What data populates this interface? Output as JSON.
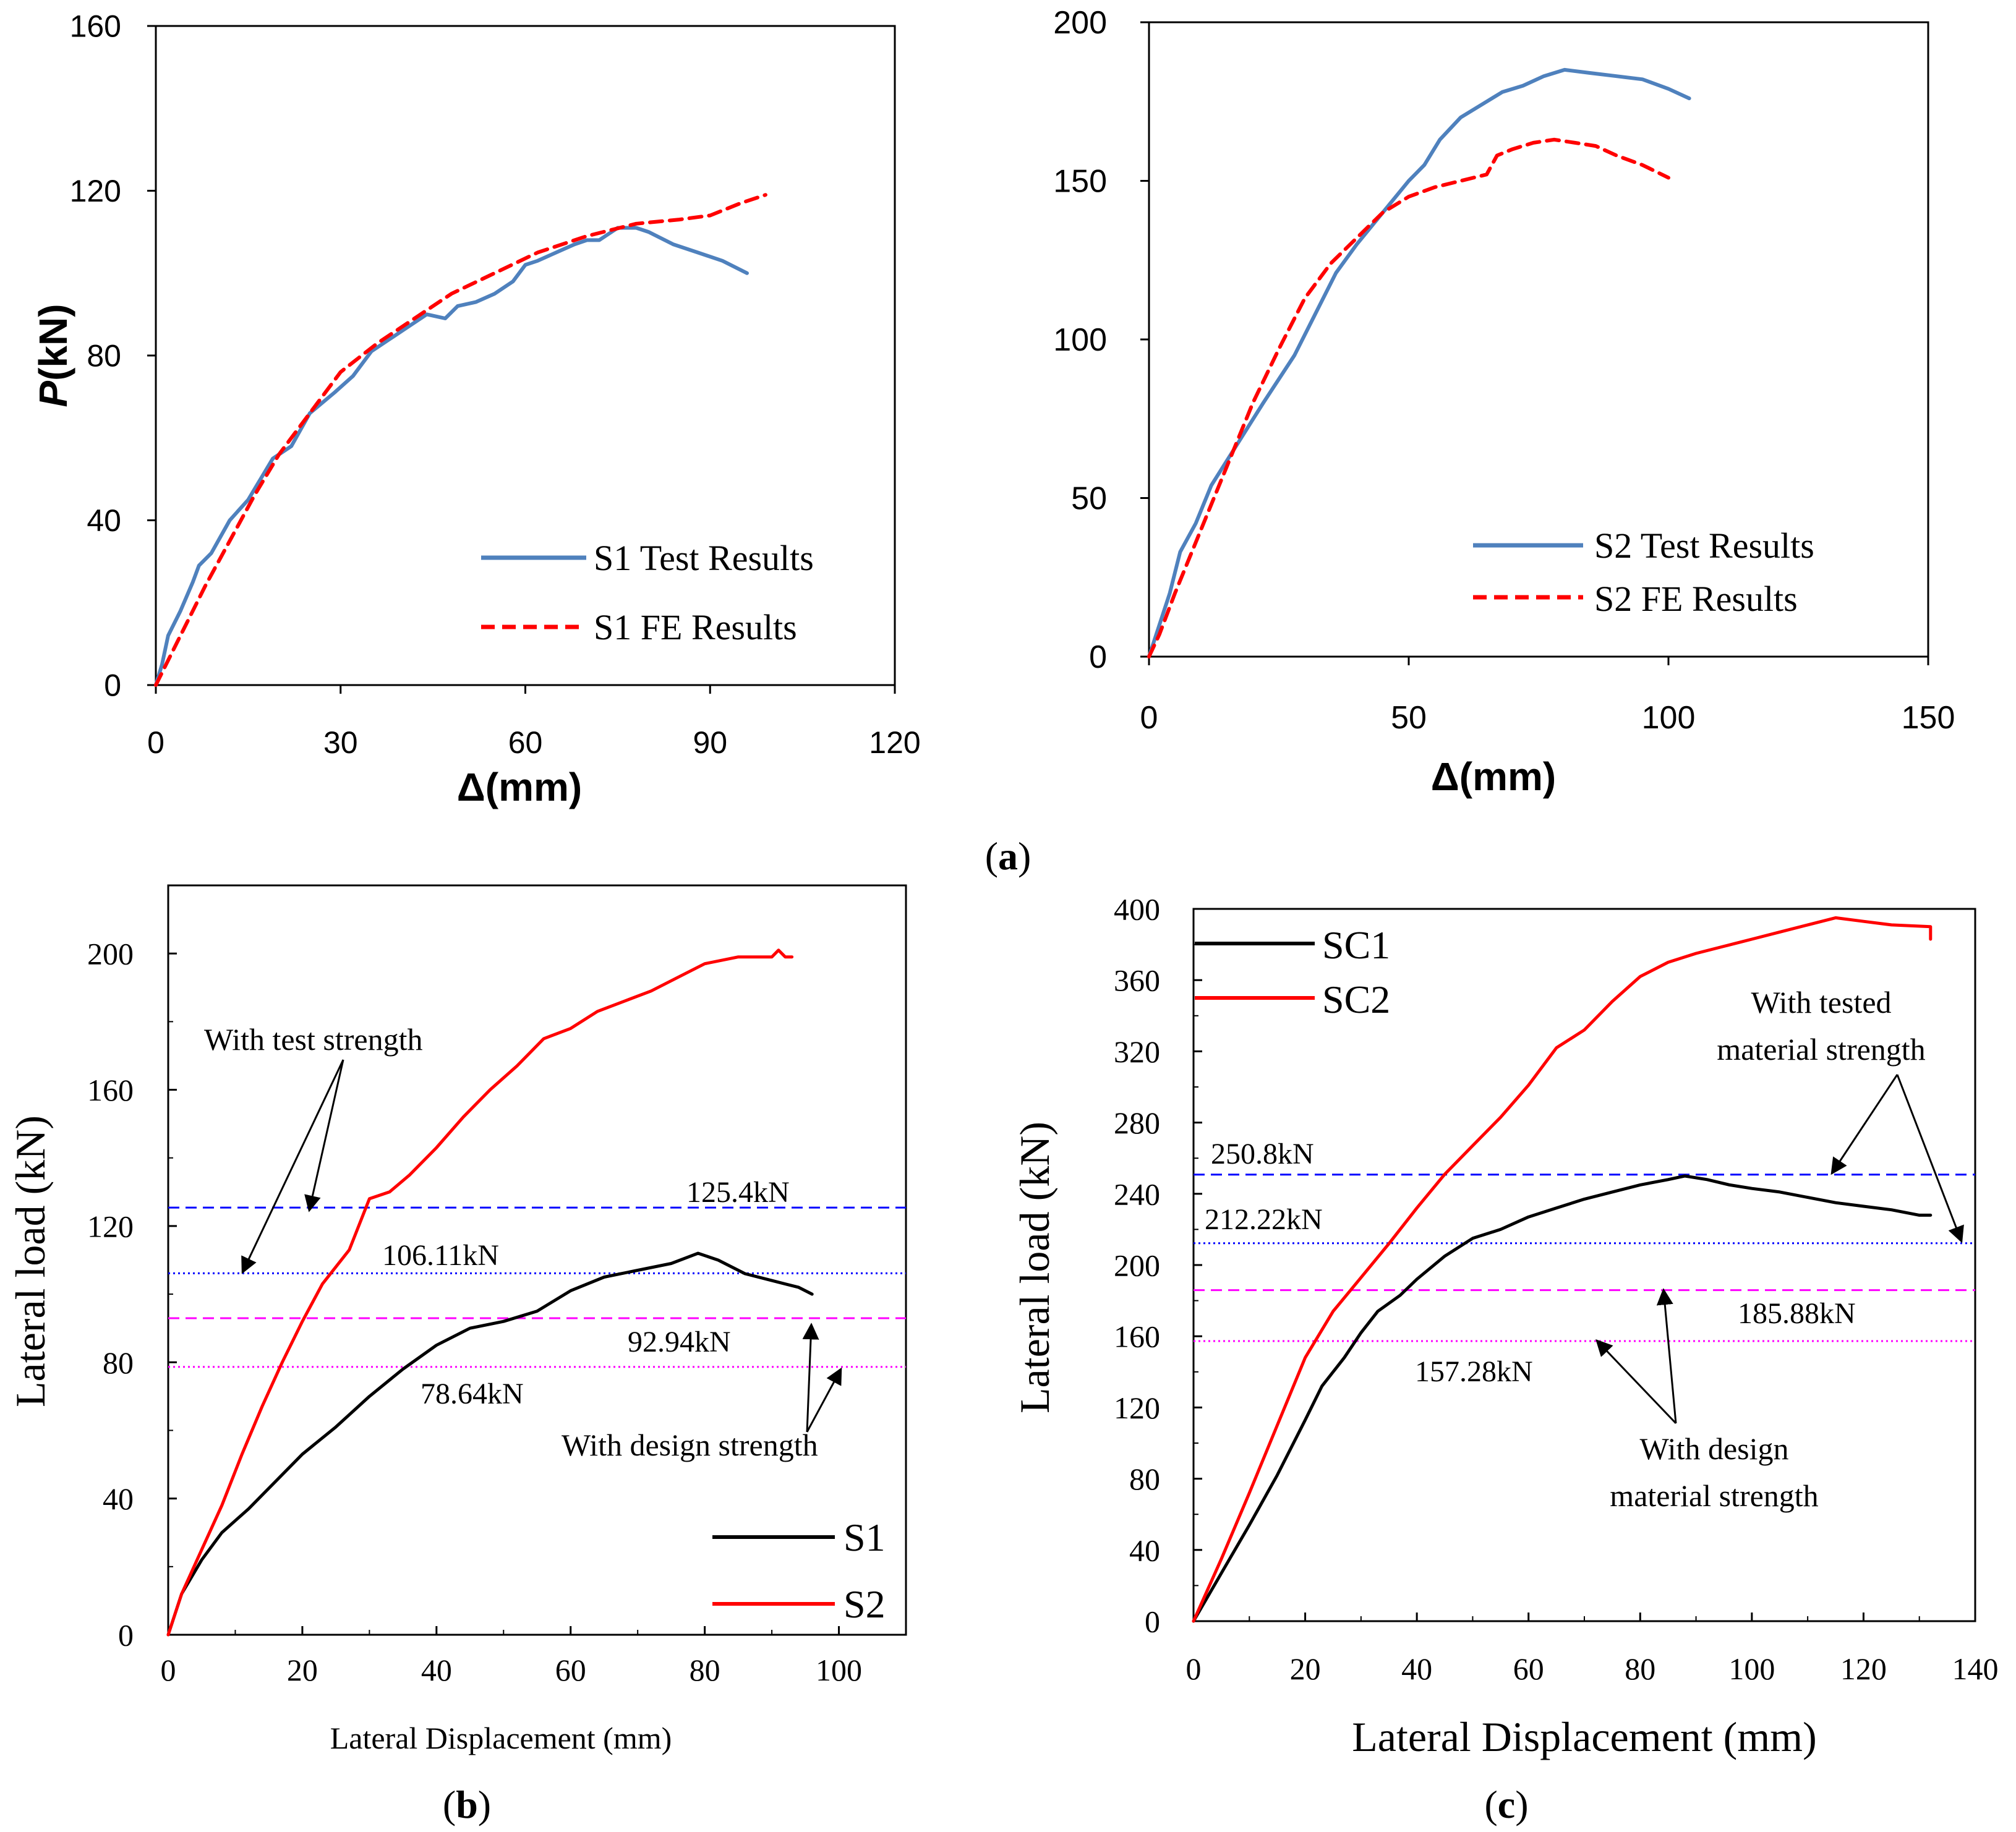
{
  "panel_labels": {
    "a": "a",
    "b": "b",
    "c": "c"
  },
  "colors": {
    "test_blue": "#4f81bd",
    "fe_red": "#ff0000",
    "black": "#000000",
    "red": "#ff0000",
    "ref_blue": "#0000ff",
    "ref_magenta": "#ff00ff",
    "axis": "#000000"
  },
  "chart_data": [
    {
      "id": "a1",
      "type": "line",
      "xlabel": "Δ(mm)",
      "ylabel_italic": "P",
      "ylabel_rest": "(kN)",
      "xlim": [
        0,
        120
      ],
      "ylim": [
        0,
        160
      ],
      "xticks": [
        0,
        30,
        60,
        90,
        120
      ],
      "yticks": [
        0,
        40,
        80,
        120,
        160
      ],
      "series": [
        {
          "name": "S1 Test Results",
          "style": "solid",
          "color": "#4f81bd",
          "points": [
            [
              0,
              0
            ],
            [
              1,
              5
            ],
            [
              2,
              12
            ],
            [
              4,
              18
            ],
            [
              6,
              25
            ],
            [
              7,
              29
            ],
            [
              9,
              32
            ],
            [
              12,
              40
            ],
            [
              15,
              45
            ],
            [
              19,
              55
            ],
            [
              22,
              58
            ],
            [
              25,
              66
            ],
            [
              29,
              71
            ],
            [
              32,
              75
            ],
            [
              35,
              81
            ],
            [
              40,
              86
            ],
            [
              44,
              90
            ],
            [
              47,
              89
            ],
            [
              49,
              92
            ],
            [
              52,
              93
            ],
            [
              55,
              95
            ],
            [
              58,
              98
            ],
            [
              60,
              102
            ],
            [
              62,
              103
            ],
            [
              65,
              105
            ],
            [
              68,
              107
            ],
            [
              70,
              108
            ],
            [
              72,
              108
            ],
            [
              75,
              111
            ],
            [
              78,
              111
            ],
            [
              80,
              110
            ],
            [
              84,
              107
            ],
            [
              88,
              105
            ],
            [
              92,
              103
            ],
            [
              96,
              100
            ]
          ]
        },
        {
          "name": "S1 FE Results",
          "style": "dashed",
          "color": "#ff0000",
          "points": [
            [
              0,
              0
            ],
            [
              4,
              12
            ],
            [
              8,
              24
            ],
            [
              12,
              35
            ],
            [
              16,
              46
            ],
            [
              20,
              56
            ],
            [
              25,
              66
            ],
            [
              30,
              76
            ],
            [
              36,
              83
            ],
            [
              42,
              89
            ],
            [
              48,
              95
            ],
            [
              55,
              100
            ],
            [
              62,
              105
            ],
            [
              70,
              109
            ],
            [
              78,
              112
            ],
            [
              85,
              113
            ],
            [
              90,
              114
            ],
            [
              95,
              117
            ],
            [
              99,
              119
            ]
          ]
        }
      ],
      "legend": [
        "S1 Test Results",
        "S1 FE Results"
      ]
    },
    {
      "id": "a2",
      "type": "line",
      "xlabel": "Δ(mm)",
      "xlim": [
        0,
        150
      ],
      "ylim": [
        0,
        200
      ],
      "xticks": [
        0,
        50,
        100,
        150
      ],
      "yticks": [
        0,
        50,
        100,
        150,
        200
      ],
      "series": [
        {
          "name": "S2 Test Results",
          "style": "solid",
          "color": "#4f81bd",
          "points": [
            [
              0,
              0
            ],
            [
              1,
              5
            ],
            [
              2,
              10
            ],
            [
              4,
              20
            ],
            [
              6,
              33
            ],
            [
              9,
              42
            ],
            [
              12,
              54
            ],
            [
              17,
              67
            ],
            [
              22,
              80
            ],
            [
              28,
              95
            ],
            [
              32,
              108
            ],
            [
              36,
              121
            ],
            [
              40,
              130
            ],
            [
              45,
              140
            ],
            [
              50,
              150
            ],
            [
              53,
              155
            ],
            [
              56,
              163
            ],
            [
              60,
              170
            ],
            [
              65,
              175
            ],
            [
              68,
              178
            ],
            [
              72,
              180
            ],
            [
              76,
              183
            ],
            [
              80,
              185
            ],
            [
              85,
              184
            ],
            [
              90,
              183
            ],
            [
              95,
              182
            ],
            [
              100,
              179
            ],
            [
              104,
              176
            ]
          ]
        },
        {
          "name": "S2 FE Results",
          "style": "dashed",
          "color": "#ff0000",
          "points": [
            [
              0,
              0
            ],
            [
              2,
              7
            ],
            [
              5,
              20
            ],
            [
              10,
              40
            ],
            [
              15,
              60
            ],
            [
              20,
              80
            ],
            [
              25,
              97
            ],
            [
              30,
              113
            ],
            [
              35,
              124
            ],
            [
              40,
              132
            ],
            [
              45,
              140
            ],
            [
              50,
              145
            ],
            [
              55,
              148
            ],
            [
              60,
              150
            ],
            [
              65,
              152
            ],
            [
              67,
              158
            ],
            [
              70,
              160
            ],
            [
              74,
              162
            ],
            [
              78,
              163
            ],
            [
              82,
              162
            ],
            [
              86,
              161
            ],
            [
              90,
              158
            ],
            [
              95,
              155
            ],
            [
              100,
              151
            ]
          ]
        }
      ],
      "legend": [
        "S2 Test Results",
        "S2 FE Results"
      ]
    },
    {
      "id": "b",
      "type": "line",
      "xlabel": "Lateral Displacement (mm)",
      "ylabel": "Lateral load (kN)",
      "xlim": [
        0,
        110
      ],
      "ylim": [
        0,
        220
      ],
      "xticks": [
        0,
        20,
        40,
        60,
        80,
        100
      ],
      "yticks": [
        0,
        40,
        80,
        120,
        160,
        200
      ],
      "series": [
        {
          "name": "S1",
          "style": "solid",
          "color": "#000000",
          "points": [
            [
              0,
              0
            ],
            [
              2,
              12
            ],
            [
              5,
              22
            ],
            [
              8,
              30
            ],
            [
              12,
              37
            ],
            [
              16,
              45
            ],
            [
              20,
              53
            ],
            [
              25,
              61
            ],
            [
              30,
              70
            ],
            [
              35,
              78
            ],
            [
              40,
              85
            ],
            [
              45,
              90
            ],
            [
              50,
              92
            ],
            [
              55,
              95
            ],
            [
              60,
              101
            ],
            [
              65,
              105
            ],
            [
              70,
              107
            ],
            [
              75,
              109
            ],
            [
              79,
              112
            ],
            [
              82,
              110
            ],
            [
              86,
              106
            ],
            [
              90,
              104
            ],
            [
              94,
              102
            ],
            [
              96,
              100
            ]
          ]
        },
        {
          "name": "S2",
          "style": "solid",
          "color": "#ff0000",
          "points": [
            [
              0,
              0
            ],
            [
              2,
              12
            ],
            [
              5,
              25
            ],
            [
              8,
              38
            ],
            [
              11,
              53
            ],
            [
              14,
              67
            ],
            [
              17,
              80
            ],
            [
              20,
              92
            ],
            [
              23,
              103
            ],
            [
              27,
              113
            ],
            [
              30,
              128
            ],
            [
              33,
              130
            ],
            [
              36,
              135
            ],
            [
              40,
              143
            ],
            [
              44,
              152
            ],
            [
              48,
              160
            ],
            [
              52,
              167
            ],
            [
              56,
              175
            ],
            [
              60,
              178
            ],
            [
              64,
              183
            ],
            [
              68,
              186
            ],
            [
              72,
              189
            ],
            [
              76,
              193
            ],
            [
              80,
              197
            ],
            [
              85,
              199
            ],
            [
              90,
              199
            ],
            [
              91,
              201
            ],
            [
              92,
              199
            ],
            [
              93,
              199
            ]
          ]
        }
      ],
      "reference_lines": [
        {
          "value": 125.4,
          "label": "125.4kN",
          "color": "#0000ff",
          "style": "dashed"
        },
        {
          "value": 106.11,
          "label": "106.11kN",
          "color": "#0000ff",
          "style": "dotted"
        },
        {
          "value": 92.94,
          "label": "92.94kN",
          "color": "#ff00ff",
          "style": "dashed"
        },
        {
          "value": 78.64,
          "label": "78.64kN",
          "color": "#ff00ff",
          "style": "dotted"
        }
      ],
      "annotations": [
        "With test strength",
        "With design strength"
      ],
      "legend": [
        "S1",
        "S2"
      ]
    },
    {
      "id": "c",
      "type": "line",
      "xlabel": "Lateral Displacement (mm)",
      "ylabel": "Lateral load (kN)",
      "xlim": [
        0,
        140
      ],
      "ylim": [
        0,
        400
      ],
      "xticks": [
        0,
        20,
        40,
        60,
        80,
        100,
        120,
        140
      ],
      "yticks": [
        0,
        40,
        80,
        120,
        160,
        200,
        240,
        280,
        320,
        360,
        400
      ],
      "series": [
        {
          "name": "SC1",
          "style": "solid",
          "color": "#000000",
          "points": [
            [
              0,
              0
            ],
            [
              5,
              27
            ],
            [
              10,
              54
            ],
            [
              15,
              82
            ],
            [
              20,
              113
            ],
            [
              23,
              132
            ],
            [
              27,
              148
            ],
            [
              30,
              162
            ],
            [
              33,
              174
            ],
            [
              37,
              183
            ],
            [
              40,
              192
            ],
            [
              45,
              205
            ],
            [
              50,
              215
            ],
            [
              55,
              220
            ],
            [
              60,
              227
            ],
            [
              65,
              232
            ],
            [
              70,
              237
            ],
            [
              75,
              241
            ],
            [
              80,
              245
            ],
            [
              85,
              248
            ],
            [
              88,
              250
            ],
            [
              92,
              248
            ],
            [
              96,
              245
            ],
            [
              100,
              243
            ],
            [
              105,
              241
            ],
            [
              110,
              238
            ],
            [
              115,
              235
            ],
            [
              120,
              233
            ],
            [
              125,
              231
            ],
            [
              130,
              228
            ],
            [
              132,
              228
            ]
          ]
        },
        {
          "name": "SC2",
          "style": "solid",
          "color": "#ff0000",
          "points": [
            [
              0,
              0
            ],
            [
              5,
              35
            ],
            [
              10,
              72
            ],
            [
              15,
              110
            ],
            [
              20,
              148
            ],
            [
              25,
              174
            ],
            [
              30,
              193
            ],
            [
              35,
              212
            ],
            [
              40,
              232
            ],
            [
              45,
              251
            ],
            [
              50,
              267
            ],
            [
              55,
              283
            ],
            [
              60,
              301
            ],
            [
              65,
              322
            ],
            [
              70,
              332
            ],
            [
              75,
              348
            ],
            [
              80,
              362
            ],
            [
              85,
              370
            ],
            [
              90,
              375
            ],
            [
              95,
              379
            ],
            [
              100,
              383
            ],
            [
              105,
              387
            ],
            [
              110,
              391
            ],
            [
              115,
              395
            ],
            [
              120,
              393
            ],
            [
              125,
              391
            ],
            [
              132,
              390
            ],
            [
              132,
              383
            ]
          ]
        }
      ],
      "reference_lines": [
        {
          "value": 250.8,
          "label": "250.8kN",
          "color": "#0000ff",
          "style": "dashed"
        },
        {
          "value": 212.22,
          "label": "212.22kN",
          "color": "#0000ff",
          "style": "dotted"
        },
        {
          "value": 185.88,
          "label": "185.88kN",
          "color": "#ff00ff",
          "style": "dashed"
        },
        {
          "value": 157.28,
          "label": "157.28kN",
          "color": "#ff00ff",
          "style": "dotted"
        }
      ],
      "annotations": [
        "With tested",
        "material strength",
        "With design",
        "material strength"
      ],
      "legend": [
        "SC1",
        "SC2"
      ]
    }
  ]
}
